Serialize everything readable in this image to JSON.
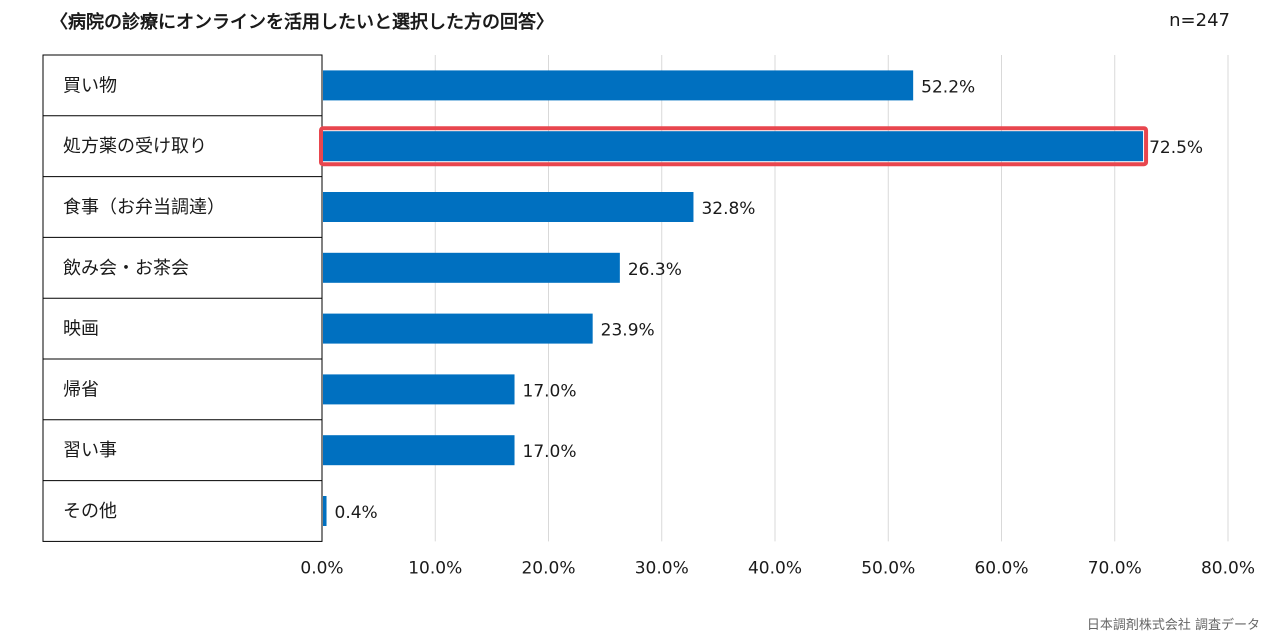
{
  "title": "〈病院の診療にオンラインを活用したいと選択した方の回答〉",
  "sample_size": "n=247",
  "source": "日本調剤株式会社 調査データ",
  "colors": {
    "bar": "#0070C0",
    "highlight": "#E8464E",
    "grid": "#d9d9d9",
    "border": "#000000"
  },
  "chart_data": {
    "type": "bar",
    "orientation": "horizontal",
    "title": "〈病院の診療にオンラインを活用したいと選択した方の回答〉",
    "categories": [
      "買い物",
      "処方薬の受け取り",
      "食事（お弁当調達）",
      "飲み会・お茶会",
      "映画",
      "帰省",
      "習い事",
      "その他"
    ],
    "values": [
      52.2,
      72.5,
      32.8,
      26.3,
      23.9,
      17.0,
      17.0,
      0.4
    ],
    "value_labels": [
      "52.2%",
      "72.5%",
      "32.8%",
      "26.3%",
      "23.9%",
      "17.0%",
      "17.0%",
      "0.4%"
    ],
    "highlighted_category": "処方薬の受け取り",
    "xlim": [
      0,
      80
    ],
    "xticks": [
      0,
      10,
      20,
      30,
      40,
      50,
      60,
      70,
      80
    ],
    "xtick_labels": [
      "0.0%",
      "10.0%",
      "20.0%",
      "30.0%",
      "40.0%",
      "50.0%",
      "60.0%",
      "70.0%",
      "80.0%"
    ],
    "grid": true,
    "xlabel": "",
    "ylabel": ""
  }
}
